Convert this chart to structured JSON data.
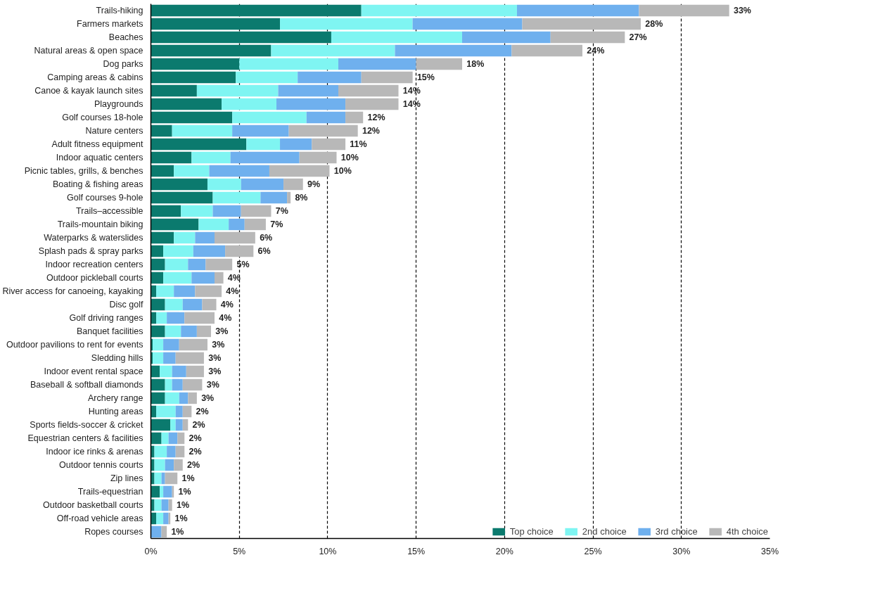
{
  "chart_data": {
    "type": "bar",
    "orientation": "horizontal",
    "stacked": true,
    "categories": [
      "Trails-hiking",
      "Farmers markets",
      "Beaches",
      "Natural areas & open space",
      "Dog parks",
      "Camping areas & cabins",
      "Canoe & kayak launch sites",
      "Playgrounds",
      "Golf courses 18-hole",
      "Nature centers",
      "Adult fitness equipment",
      "Indoor aquatic centers",
      "Picnic tables, grills, & benches",
      "Boating & fishing areas",
      "Golf courses 9-hole",
      "Trails–accessible",
      "Trails-mountain biking",
      "Waterparks & waterslides",
      "Splash pads & spray parks",
      "Indoor recreation centers",
      "Outdoor pickleball courts",
      "River access for canoeing, kayaking",
      "Disc golf",
      "Golf driving ranges",
      "Banquet facilities",
      "Outdoor pavilions to rent for events",
      "Sledding hills",
      "Indoor event rental space",
      "Baseball & softball diamonds",
      "Archery range",
      "Hunting areas",
      "Sports fields-soccer & cricket",
      "Equestrian centers & facilities",
      "Indoor ice rinks & arenas",
      "Outdoor tennis courts",
      "Zip lines",
      "Trails-equestrian",
      "Outdoor basketball courts",
      "Off-road vehicle areas",
      "Ropes courses"
    ],
    "series": [
      {
        "name": "Top choice",
        "color": "#0b7a6e",
        "values": [
          11.9,
          7.3,
          10.2,
          6.8,
          5.0,
          4.8,
          2.6,
          4.0,
          4.6,
          1.2,
          5.4,
          2.3,
          1.3,
          3.2,
          3.5,
          1.7,
          2.7,
          1.3,
          0.7,
          0.8,
          0.7,
          0.3,
          0.8,
          0.3,
          0.8,
          0.1,
          0.1,
          0.5,
          0.8,
          0.8,
          0.3,
          1.1,
          0.6,
          0.2,
          0.2,
          0.2,
          0.5,
          0.2,
          0.3,
          0
        ]
      },
      {
        "name": "2nd choice",
        "color": "#7ff5f2",
        "values": [
          8.8,
          7.5,
          7.4,
          7.0,
          5.6,
          3.5,
          4.6,
          3.1,
          4.2,
          3.4,
          1.9,
          2.2,
          2.0,
          1.9,
          2.7,
          1.8,
          1.7,
          1.2,
          1.7,
          1.3,
          1.6,
          1.0,
          1.0,
          0.6,
          0.9,
          0.6,
          0.6,
          0.7,
          0.4,
          0.8,
          1.1,
          0.3,
          0.4,
          0.7,
          0.6,
          0.4,
          0.2,
          0.4,
          0.4,
          0
        ]
      },
      {
        "name": "3rd choice",
        "color": "#6fb0ee",
        "values": [
          6.9,
          6.2,
          5.0,
          6.6,
          4.4,
          3.6,
          3.4,
          3.9,
          2.2,
          3.2,
          1.8,
          3.9,
          3.4,
          2.4,
          1.5,
          1.6,
          0.9,
          1.1,
          1.8,
          1.0,
          1.3,
          1.2,
          1.1,
          1.0,
          0.9,
          0.9,
          0.7,
          0.8,
          0.6,
          0.5,
          0.4,
          0.4,
          0.5,
          0.5,
          0.5,
          0.2,
          0.5,
          0.4,
          0.3,
          0.6
        ]
      },
      {
        "name": "4th choice",
        "color": "#b8b8b8",
        "values": [
          5.1,
          6.7,
          4.2,
          4.0,
          2.6,
          2.9,
          3.4,
          3.0,
          1.0,
          3.9,
          1.9,
          2.1,
          3.4,
          1.1,
          0.2,
          1.7,
          1.2,
          2.3,
          1.6,
          1.5,
          0.5,
          1.5,
          0.8,
          1.7,
          0.8,
          1.6,
          1.6,
          1.0,
          1.1,
          0.5,
          0.5,
          0.3,
          0.4,
          0.5,
          0.5,
          0.7,
          0.1,
          0.2,
          0.1,
          0.3
        ]
      }
    ],
    "totals": [
      "33%",
      "28%",
      "27%",
      "24%",
      "18%",
      "15%",
      "14%",
      "14%",
      "12%",
      "12%",
      "11%",
      "10%",
      "10%",
      "9%",
      "8%",
      "7%",
      "7%",
      "6%",
      "6%",
      "5%",
      "4%",
      "4%",
      "4%",
      "4%",
      "3%",
      "3%",
      "3%",
      "3%",
      "3%",
      "3%",
      "2%",
      "2%",
      "2%",
      "2%",
      "2%",
      "1%",
      "1%",
      "1%",
      "1%",
      "1%"
    ],
    "xlim": [
      0,
      35
    ],
    "xticks": [
      {
        "value": 0,
        "label": "0%"
      },
      {
        "value": 5,
        "label": "5%"
      },
      {
        "value": 10,
        "label": "10%"
      },
      {
        "value": 15,
        "label": "15%"
      },
      {
        "value": 20,
        "label": "20%"
      },
      {
        "value": 25,
        "label": "25%"
      },
      {
        "value": 30,
        "label": "30%"
      },
      {
        "value": 35,
        "label": "35%"
      }
    ],
    "grid": "x",
    "legend": "bottom right"
  }
}
